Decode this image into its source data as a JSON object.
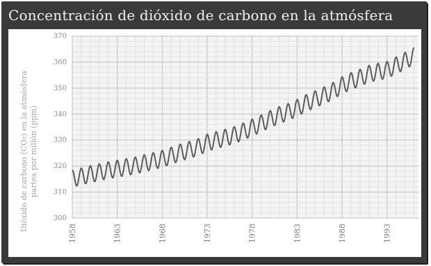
{
  "title": "Concentración de dióxido de carbono en la atmósfera",
  "chart_data": {
    "type": "line",
    "title": "Concentración de dióxido de carbono en la atmósfera",
    "xlabel": "",
    "ylabel": [
      "Dióxido de carbono (CO₂) en la atmósfera",
      "partes por millón (ppm)"
    ],
    "xlim": [
      1958,
      1996.5
    ],
    "ylim": [
      300,
      370
    ],
    "x_ticks": [
      "1958",
      "1963",
      "1968",
      "1973",
      "1978",
      "1983",
      "1988",
      "1993"
    ],
    "y_ticks": [
      "300",
      "310",
      "320",
      "330",
      "340",
      "350",
      "360",
      "370"
    ],
    "grid": true,
    "series": [
      {
        "x": [
          1958.0,
          1959.0,
          1960.0,
          1961.0,
          1962.0,
          1963.0,
          1964.0,
          1965.0,
          1966.0,
          1967.0,
          1968.0,
          1969.0,
          1970.0,
          1971.0,
          1972.0,
          1973.0,
          1974.0,
          1975.0,
          1976.0,
          1977.0,
          1978.0,
          1979.0,
          1980.0,
          1981.0,
          1982.0,
          1983.0,
          1984.0,
          1985.0,
          1986.0,
          1987.0,
          1988.0,
          1989.0,
          1990.0,
          1991.0,
          1992.0,
          1993.0,
          1994.0,
          1995.0,
          1996.0
        ],
        "trend": [
          315.2,
          316.0,
          316.9,
          317.6,
          318.4,
          319.0,
          319.6,
          320.2,
          321.1,
          321.9,
          322.8,
          324.0,
          325.2,
          326.2,
          327.3,
          329.0,
          330.0,
          330.9,
          331.9,
          333.3,
          334.8,
          336.4,
          338.1,
          339.6,
          340.8,
          342.4,
          344.2,
          345.7,
          347.2,
          348.9,
          351.1,
          352.7,
          354.0,
          355.5,
          356.3,
          357.0,
          358.7,
          360.5,
          362.4
        ],
        "seasonal_amplitude": 3.2
      }
    ]
  }
}
